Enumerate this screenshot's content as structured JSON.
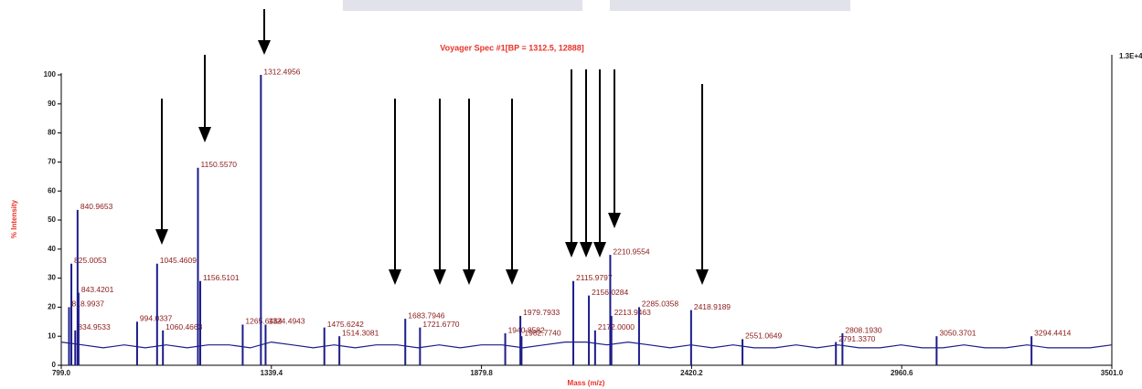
{
  "chart_data": {
    "type": "stick-spectrum",
    "title": "Voyager Spec #1[BP = 1312.5, 12888]",
    "ylabel": "% Intensity",
    "xlabel": "Mass (m/z)",
    "y2_note": "1.3E+4",
    "xlim": [
      799,
      3501
    ],
    "ylim": [
      0,
      100
    ],
    "xticks": [
      {
        "value": 799,
        "label": "799.0"
      },
      1339.4,
      1879.8,
      2420.2,
      2960.6,
      {
        "value": 3501,
        "label": "3501.0"
      }
    ],
    "yticks": [
      0,
      10,
      20,
      30,
      40,
      50,
      60,
      70,
      80,
      90,
      100
    ],
    "color": "#1c1c8a",
    "label_color": "#8b1a1a",
    "baseline": {
      "x": [
        799,
        853,
        907,
        961,
        1015,
        1069,
        1123,
        1177,
        1231,
        1285,
        1339,
        1393,
        1447,
        1501,
        1555,
        1609,
        1663,
        1717,
        1771,
        1825,
        1879,
        1933,
        1987,
        2041,
        2095,
        2149,
        2203,
        2257,
        2311,
        2365,
        2419,
        2473,
        2527,
        2581,
        2635,
        2689,
        2743,
        2797,
        2851,
        2905,
        2959,
        3013,
        3067,
        3121,
        3175,
        3229,
        3283,
        3337,
        3391,
        3445,
        3501
      ],
      "values": [
        8,
        7,
        6,
        7,
        6,
        7,
        6,
        7,
        7,
        6,
        8,
        7,
        6,
        7,
        6,
        7,
        7,
        6,
        7,
        6,
        7,
        7,
        6,
        7,
        8,
        8,
        7,
        8,
        7,
        6,
        7,
        6,
        7,
        6,
        6,
        7,
        6,
        7,
        6,
        6,
        7,
        6,
        6,
        7,
        6,
        6,
        7,
        6,
        6,
        6,
        7
      ]
    },
    "peaks": {
      "x": [
        818.9937,
        825.0053,
        834.9533,
        840.9653,
        843.4201,
        994.0337,
        1045.4609,
        1060.4663,
        1150.557,
        1156.5101,
        1265.6464,
        1312.4956,
        1324.4943,
        1475.6242,
        1514.3081,
        1683.7946,
        1721.677,
        1940.8582,
        1979.7933,
        1982.774,
        2115.9797,
        2156.0284,
        2172,
        2210.9554,
        2213.9463,
        2285.0358,
        2418.9189,
        2551.0649,
        2791.337,
        2808.193,
        3050.3701,
        3294.4414
      ],
      "x_labels": [
        "818.9937",
        "825.0053",
        "834.9533",
        "840.9653",
        "843.4201",
        "994.0337",
        "1045.4609",
        "1060.4663",
        "1150.5570",
        "1156.5101",
        "1265.6464",
        "1312.4956",
        "1324.4943",
        "1475.6242",
        "1514.3081",
        "1683.7946",
        "1721.6770",
        "1940.8582",
        "1979.7933",
        "1982.7740",
        "2115.9797",
        "2156.0284",
        "2172.0000",
        "2210.9554",
        "2213.9463",
        "2285.0358",
        "2418.9189",
        "2551.0649",
        "2791.3370",
        "2808.1930",
        "3050.3701",
        "3294.4414"
      ],
      "values": [
        20,
        35,
        12,
        53.5,
        25,
        15,
        35,
        12,
        68,
        29,
        14,
        100,
        14,
        13,
        10,
        16,
        13,
        11,
        17,
        10,
        29,
        24,
        12,
        38,
        17,
        20,
        19,
        9,
        8,
        11,
        10,
        10
      ]
    }
  }
}
